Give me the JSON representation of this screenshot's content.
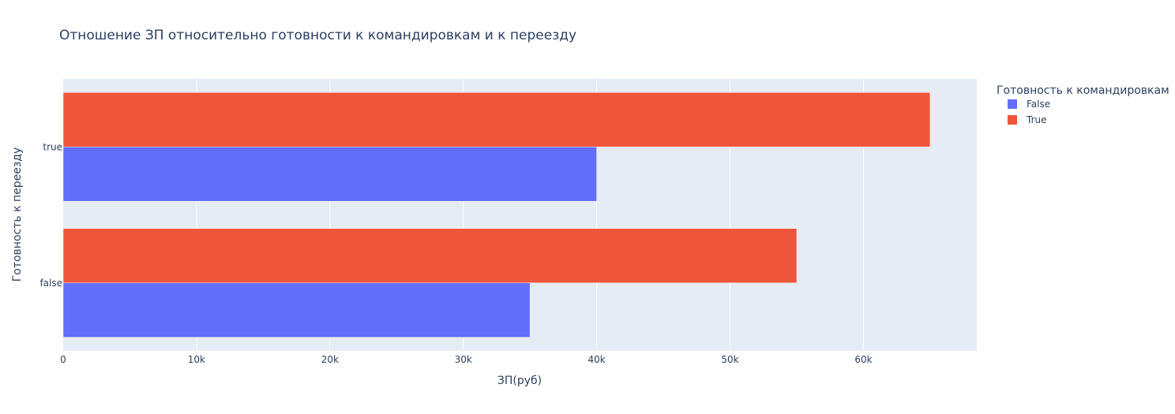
{
  "chart_data": {
    "type": "bar",
    "orientation": "horizontal",
    "barmode": "group",
    "title": "Отношение ЗП относительно готовности к командировкам и к переезду",
    "xlabel": "ЗП(руб)",
    "ylabel": "Готовность к переезду",
    "categories": [
      "false",
      "true"
    ],
    "xlim": [
      0,
      68500
    ],
    "x_ticks": [
      {
        "value": 0,
        "label": "0"
      },
      {
        "value": 10000,
        "label": "10k"
      },
      {
        "value": 20000,
        "label": "20k"
      },
      {
        "value": 30000,
        "label": "30k"
      },
      {
        "value": 40000,
        "label": "40k"
      },
      {
        "value": 50000,
        "label": "50k"
      },
      {
        "value": 60000,
        "label": "60k"
      }
    ],
    "legend": {
      "title": "Готовность к командировкам",
      "position": "top-right"
    },
    "series": [
      {
        "name": "False",
        "color": "#636efa",
        "values": [
          35000,
          40000
        ]
      },
      {
        "name": "True",
        "color": "#ef553b",
        "values": [
          55000,
          65000
        ]
      }
    ],
    "plot_background": "#e5ecf6",
    "grid": true
  }
}
